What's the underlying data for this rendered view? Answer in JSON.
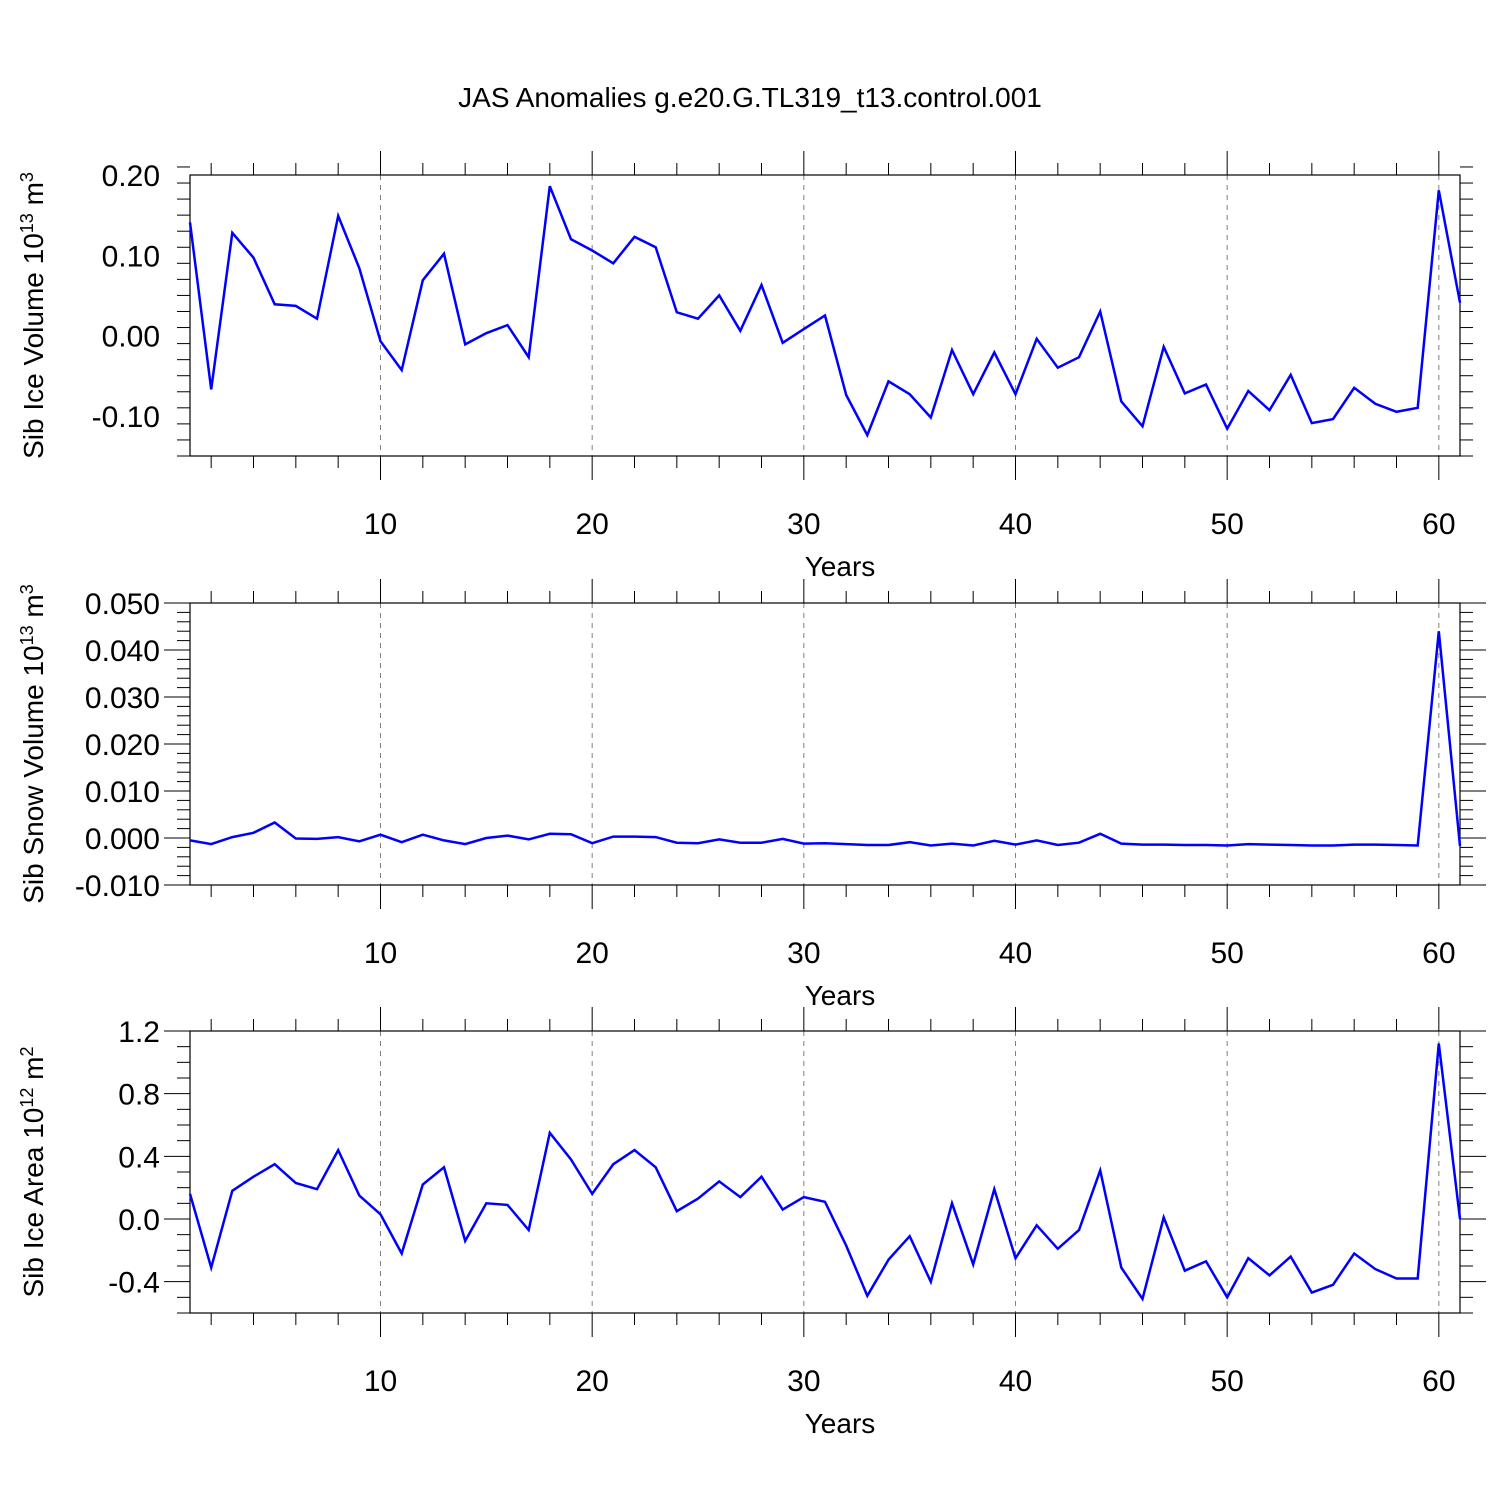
{
  "title": "JAS Anomalies g.e20.G.TL319_t13.control.001",
  "colors": {
    "line": "#0000ff",
    "axis": "#000000",
    "grid": "#808080"
  },
  "chart_data": [
    {
      "type": "line",
      "xlabel": "Years",
      "ylabel": {
        "prefix": "Sib Ice Volume 10",
        "exp1": "13",
        "middle": " m",
        "exp2": "3"
      },
      "xlim": [
        1,
        61
      ],
      "ylim": [
        -0.15,
        0.2
      ],
      "xticks": [
        10,
        20,
        30,
        40,
        50,
        60
      ],
      "yticks": [
        0.2,
        0.1,
        0.0,
        -0.1
      ],
      "ytick_labels": [
        "0.20",
        "0.10",
        "0.00",
        "-0.10"
      ],
      "yminor_step": 0.02,
      "grid": "dashed vertical lines at x ticks",
      "x": [
        1,
        2,
        3,
        4,
        5,
        6,
        7,
        8,
        9,
        10,
        11,
        12,
        13,
        14,
        15,
        16,
        17,
        18,
        19,
        20,
        21,
        22,
        23,
        24,
        25,
        26,
        27,
        28,
        29,
        30,
        31,
        32,
        33,
        34,
        35,
        36,
        37,
        38,
        39,
        40,
        41,
        42,
        43,
        44,
        45,
        46,
        47,
        48,
        49,
        50,
        51,
        52,
        53,
        54,
        55,
        56,
        57,
        58,
        59,
        60,
        61
      ],
      "series": [
        {
          "values": [
            0.141,
            -0.067,
            0.128,
            0.097,
            0.039,
            0.037,
            0.021,
            0.149,
            0.084,
            -0.007,
            -0.043,
            0.069,
            0.102,
            -0.011,
            0.003,
            0.013,
            -0.027,
            0.186,
            0.12,
            0.106,
            0.09,
            0.123,
            0.11,
            0.029,
            0.021,
            0.05,
            0.006,
            0.063,
            -0.009,
            0.008,
            0.025,
            -0.074,
            -0.124,
            -0.057,
            -0.073,
            -0.102,
            -0.018,
            -0.073,
            -0.021,
            -0.073,
            -0.004,
            -0.04,
            -0.027,
            0.03,
            -0.082,
            -0.113,
            -0.014,
            -0.072,
            -0.061,
            -0.116,
            -0.069,
            -0.093,
            -0.049,
            -0.109,
            -0.104,
            -0.065,
            -0.085,
            -0.095,
            -0.09,
            0.181,
            0.041
          ]
        }
      ]
    },
    {
      "type": "line",
      "xlabel": "Years",
      "ylabel": {
        "prefix": "Sib Snow Volume 10",
        "exp1": "13",
        "middle": " m",
        "exp2": "3"
      },
      "xlim": [
        1,
        61
      ],
      "ylim": [
        -0.01,
        0.05
      ],
      "xticks": [
        10,
        20,
        30,
        40,
        50,
        60
      ],
      "yticks": [
        0.05,
        0.04,
        0.03,
        0.02,
        0.01,
        0.0,
        -0.01
      ],
      "ytick_labels": [
        "0.050",
        "0.040",
        "0.030",
        "0.020",
        "0.010",
        "0.000",
        "-0.010"
      ],
      "yminor_step": 0.002,
      "grid": "dashed vertical lines at x ticks",
      "x": [
        1,
        2,
        3,
        4,
        5,
        6,
        7,
        8,
        9,
        10,
        11,
        12,
        13,
        14,
        15,
        16,
        17,
        18,
        19,
        20,
        21,
        22,
        23,
        24,
        25,
        26,
        27,
        28,
        29,
        30,
        31,
        32,
        33,
        34,
        35,
        36,
        37,
        38,
        39,
        40,
        41,
        42,
        43,
        44,
        45,
        46,
        47,
        48,
        49,
        50,
        51,
        52,
        53,
        54,
        55,
        56,
        57,
        58,
        59,
        60,
        61
      ],
      "series": [
        {
          "values": [
            -0.0005,
            -0.0013,
            0.0002,
            0.0011,
            0.0033,
            -0.0001,
            -0.0002,
            0.0002,
            -0.0007,
            0.0007,
            -0.0009,
            0.0007,
            -0.0005,
            -0.0013,
            0.0,
            0.0005,
            -0.0003,
            0.0009,
            0.0008,
            -0.0011,
            0.0003,
            0.0003,
            0.0002,
            -0.001,
            -0.0011,
            -0.0003,
            -0.001,
            -0.001,
            -0.0002,
            -0.0012,
            -0.0011,
            -0.0013,
            -0.0015,
            -0.0015,
            -0.0009,
            -0.0016,
            -0.0012,
            -0.0016,
            -0.0006,
            -0.0014,
            -0.0005,
            -0.0015,
            -0.001,
            0.0009,
            -0.0012,
            -0.0014,
            -0.0014,
            -0.0015,
            -0.0015,
            -0.0016,
            -0.0013,
            -0.0014,
            -0.0015,
            -0.0016,
            -0.0016,
            -0.0014,
            -0.0014,
            -0.0015,
            -0.0016,
            0.044,
            -0.0017
          ]
        }
      ]
    },
    {
      "type": "line",
      "xlabel": "Years",
      "ylabel": {
        "prefix": "Sib Ice Area 10",
        "exp1": "12",
        "middle": " m",
        "exp2": "2"
      },
      "xlim": [
        1,
        61
      ],
      "ylim": [
        -0.6,
        1.2
      ],
      "xticks": [
        10,
        20,
        30,
        40,
        50,
        60
      ],
      "yticks": [
        1.2,
        0.8,
        0.4,
        0.0,
        -0.4
      ],
      "ytick_labels": [
        "1.2",
        "0.8",
        "0.4",
        "0.0",
        "-0.4"
      ],
      "yminor_step": 0.1,
      "grid": "dashed vertical lines at x ticks",
      "x": [
        1,
        2,
        3,
        4,
        5,
        6,
        7,
        8,
        9,
        10,
        11,
        12,
        13,
        14,
        15,
        16,
        17,
        18,
        19,
        20,
        21,
        22,
        23,
        24,
        25,
        26,
        27,
        28,
        29,
        30,
        31,
        32,
        33,
        34,
        35,
        36,
        37,
        38,
        39,
        40,
        41,
        42,
        43,
        44,
        45,
        46,
        47,
        48,
        49,
        50,
        51,
        52,
        53,
        54,
        55,
        56,
        57,
        58,
        59,
        60,
        61
      ],
      "series": [
        {
          "values": [
            0.16,
            -0.31,
            0.18,
            0.27,
            0.35,
            0.23,
            0.19,
            0.44,
            0.15,
            0.03,
            -0.22,
            0.22,
            0.33,
            -0.14,
            0.1,
            0.09,
            -0.07,
            0.55,
            0.38,
            0.16,
            0.35,
            0.44,
            0.33,
            0.05,
            0.13,
            0.24,
            0.14,
            0.27,
            0.06,
            0.14,
            0.11,
            -0.17,
            -0.49,
            -0.26,
            -0.11,
            -0.4,
            0.1,
            -0.29,
            0.19,
            -0.25,
            -0.04,
            -0.19,
            -0.07,
            0.31,
            -0.31,
            -0.51,
            0.01,
            -0.33,
            -0.27,
            -0.5,
            -0.25,
            -0.36,
            -0.24,
            -0.47,
            -0.42,
            -0.22,
            -0.32,
            -0.38,
            -0.38,
            1.12,
            0.0
          ]
        }
      ]
    }
  ]
}
